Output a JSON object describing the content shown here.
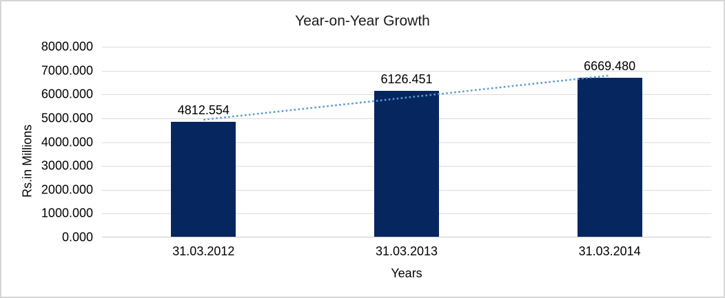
{
  "window": {
    "background": "#ffffff",
    "border_color": "#d5d5d5"
  },
  "chart_data": {
    "type": "bar",
    "title": "Year-on-Year Growth",
    "xlabel": "Years",
    "ylabel": "Rs.in Millions",
    "categories": [
      "31.03.2012",
      "31.03.2013",
      "31.03.2014"
    ],
    "values": [
      4812.554,
      6126.451,
      6669.48
    ],
    "data_labels": [
      "4812.554",
      "6126.451",
      "6669.480"
    ],
    "ylim": [
      0,
      8000
    ],
    "ytick_interval": 1000,
    "ytick_labels": [
      "0.000",
      "1000.000",
      "2000.000",
      "3000.000",
      "4000.000",
      "5000.000",
      "6000.000",
      "7000.000",
      "8000.000"
    ],
    "grid": true,
    "legend": "none",
    "trendline": {
      "type": "linear",
      "style": "dotted",
      "color": "#5b9bd5"
    },
    "colors": {
      "bar": "#06265f",
      "gridline": "#dbdbdb",
      "axis_line": "#c9c9c9",
      "text": "#000000",
      "title_text": "#1a1a1a"
    }
  }
}
